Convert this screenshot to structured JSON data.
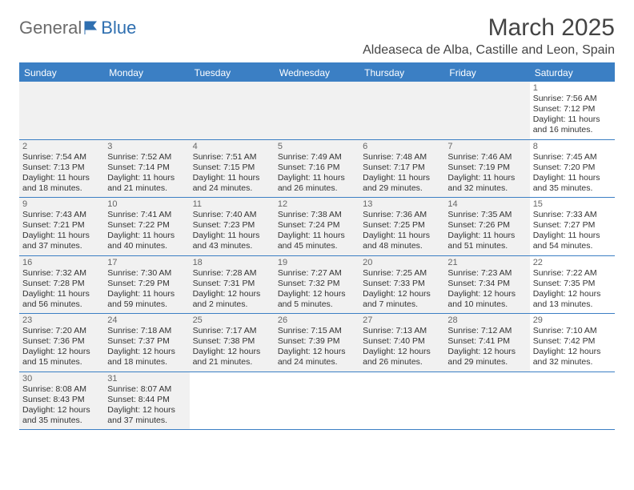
{
  "logo": {
    "part1": "General",
    "part2": "Blue"
  },
  "header": {
    "month_title": "March 2025",
    "location": "Aldeaseca de Alba, Castille and Leon, Spain"
  },
  "colors": {
    "header_blue": "#3b7fc4",
    "shaded_bg": "#f1f1f1",
    "text": "#333333",
    "logo_gray": "#6b6b6b",
    "logo_blue": "#2f6fb0"
  },
  "days_of_week": [
    "Sunday",
    "Monday",
    "Tuesday",
    "Wednesday",
    "Thursday",
    "Friday",
    "Saturday"
  ],
  "weeks": [
    [
      {
        "n": "",
        "shaded": true
      },
      {
        "n": "",
        "shaded": true
      },
      {
        "n": "",
        "shaded": true
      },
      {
        "n": "",
        "shaded": true
      },
      {
        "n": "",
        "shaded": true
      },
      {
        "n": "",
        "shaded": true
      },
      {
        "n": "1",
        "shaded": false,
        "sunrise": "Sunrise: 7:56 AM",
        "sunset": "Sunset: 7:12 PM",
        "day1": "Daylight: 11 hours",
        "day2": "and 16 minutes."
      }
    ],
    [
      {
        "n": "2",
        "shaded": true,
        "sunrise": "Sunrise: 7:54 AM",
        "sunset": "Sunset: 7:13 PM",
        "day1": "Daylight: 11 hours",
        "day2": "and 18 minutes."
      },
      {
        "n": "3",
        "shaded": true,
        "sunrise": "Sunrise: 7:52 AM",
        "sunset": "Sunset: 7:14 PM",
        "day1": "Daylight: 11 hours",
        "day2": "and 21 minutes."
      },
      {
        "n": "4",
        "shaded": true,
        "sunrise": "Sunrise: 7:51 AM",
        "sunset": "Sunset: 7:15 PM",
        "day1": "Daylight: 11 hours",
        "day2": "and 24 minutes."
      },
      {
        "n": "5",
        "shaded": true,
        "sunrise": "Sunrise: 7:49 AM",
        "sunset": "Sunset: 7:16 PM",
        "day1": "Daylight: 11 hours",
        "day2": "and 26 minutes."
      },
      {
        "n": "6",
        "shaded": true,
        "sunrise": "Sunrise: 7:48 AM",
        "sunset": "Sunset: 7:17 PM",
        "day1": "Daylight: 11 hours",
        "day2": "and 29 minutes."
      },
      {
        "n": "7",
        "shaded": true,
        "sunrise": "Sunrise: 7:46 AM",
        "sunset": "Sunset: 7:19 PM",
        "day1": "Daylight: 11 hours",
        "day2": "and 32 minutes."
      },
      {
        "n": "8",
        "shaded": false,
        "sunrise": "Sunrise: 7:45 AM",
        "sunset": "Sunset: 7:20 PM",
        "day1": "Daylight: 11 hours",
        "day2": "and 35 minutes."
      }
    ],
    [
      {
        "n": "9",
        "shaded": true,
        "sunrise": "Sunrise: 7:43 AM",
        "sunset": "Sunset: 7:21 PM",
        "day1": "Daylight: 11 hours",
        "day2": "and 37 minutes."
      },
      {
        "n": "10",
        "shaded": true,
        "sunrise": "Sunrise: 7:41 AM",
        "sunset": "Sunset: 7:22 PM",
        "day1": "Daylight: 11 hours",
        "day2": "and 40 minutes."
      },
      {
        "n": "11",
        "shaded": true,
        "sunrise": "Sunrise: 7:40 AM",
        "sunset": "Sunset: 7:23 PM",
        "day1": "Daylight: 11 hours",
        "day2": "and 43 minutes."
      },
      {
        "n": "12",
        "shaded": true,
        "sunrise": "Sunrise: 7:38 AM",
        "sunset": "Sunset: 7:24 PM",
        "day1": "Daylight: 11 hours",
        "day2": "and 45 minutes."
      },
      {
        "n": "13",
        "shaded": true,
        "sunrise": "Sunrise: 7:36 AM",
        "sunset": "Sunset: 7:25 PM",
        "day1": "Daylight: 11 hours",
        "day2": "and 48 minutes."
      },
      {
        "n": "14",
        "shaded": true,
        "sunrise": "Sunrise: 7:35 AM",
        "sunset": "Sunset: 7:26 PM",
        "day1": "Daylight: 11 hours",
        "day2": "and 51 minutes."
      },
      {
        "n": "15",
        "shaded": false,
        "sunrise": "Sunrise: 7:33 AM",
        "sunset": "Sunset: 7:27 PM",
        "day1": "Daylight: 11 hours",
        "day2": "and 54 minutes."
      }
    ],
    [
      {
        "n": "16",
        "shaded": true,
        "sunrise": "Sunrise: 7:32 AM",
        "sunset": "Sunset: 7:28 PM",
        "day1": "Daylight: 11 hours",
        "day2": "and 56 minutes."
      },
      {
        "n": "17",
        "shaded": true,
        "sunrise": "Sunrise: 7:30 AM",
        "sunset": "Sunset: 7:29 PM",
        "day1": "Daylight: 11 hours",
        "day2": "and 59 minutes."
      },
      {
        "n": "18",
        "shaded": true,
        "sunrise": "Sunrise: 7:28 AM",
        "sunset": "Sunset: 7:31 PM",
        "day1": "Daylight: 12 hours",
        "day2": "and 2 minutes."
      },
      {
        "n": "19",
        "shaded": true,
        "sunrise": "Sunrise: 7:27 AM",
        "sunset": "Sunset: 7:32 PM",
        "day1": "Daylight: 12 hours",
        "day2": "and 5 minutes."
      },
      {
        "n": "20",
        "shaded": true,
        "sunrise": "Sunrise: 7:25 AM",
        "sunset": "Sunset: 7:33 PM",
        "day1": "Daylight: 12 hours",
        "day2": "and 7 minutes."
      },
      {
        "n": "21",
        "shaded": true,
        "sunrise": "Sunrise: 7:23 AM",
        "sunset": "Sunset: 7:34 PM",
        "day1": "Daylight: 12 hours",
        "day2": "and 10 minutes."
      },
      {
        "n": "22",
        "shaded": false,
        "sunrise": "Sunrise: 7:22 AM",
        "sunset": "Sunset: 7:35 PM",
        "day1": "Daylight: 12 hours",
        "day2": "and 13 minutes."
      }
    ],
    [
      {
        "n": "23",
        "shaded": true,
        "sunrise": "Sunrise: 7:20 AM",
        "sunset": "Sunset: 7:36 PM",
        "day1": "Daylight: 12 hours",
        "day2": "and 15 minutes."
      },
      {
        "n": "24",
        "shaded": true,
        "sunrise": "Sunrise: 7:18 AM",
        "sunset": "Sunset: 7:37 PM",
        "day1": "Daylight: 12 hours",
        "day2": "and 18 minutes."
      },
      {
        "n": "25",
        "shaded": true,
        "sunrise": "Sunrise: 7:17 AM",
        "sunset": "Sunset: 7:38 PM",
        "day1": "Daylight: 12 hours",
        "day2": "and 21 minutes."
      },
      {
        "n": "26",
        "shaded": true,
        "sunrise": "Sunrise: 7:15 AM",
        "sunset": "Sunset: 7:39 PM",
        "day1": "Daylight: 12 hours",
        "day2": "and 24 minutes."
      },
      {
        "n": "27",
        "shaded": true,
        "sunrise": "Sunrise: 7:13 AM",
        "sunset": "Sunset: 7:40 PM",
        "day1": "Daylight: 12 hours",
        "day2": "and 26 minutes."
      },
      {
        "n": "28",
        "shaded": true,
        "sunrise": "Sunrise: 7:12 AM",
        "sunset": "Sunset: 7:41 PM",
        "day1": "Daylight: 12 hours",
        "day2": "and 29 minutes."
      },
      {
        "n": "29",
        "shaded": false,
        "sunrise": "Sunrise: 7:10 AM",
        "sunset": "Sunset: 7:42 PM",
        "day1": "Daylight: 12 hours",
        "day2": "and 32 minutes."
      }
    ],
    [
      {
        "n": "30",
        "shaded": true,
        "sunrise": "Sunrise: 8:08 AM",
        "sunset": "Sunset: 8:43 PM",
        "day1": "Daylight: 12 hours",
        "day2": "and 35 minutes."
      },
      {
        "n": "31",
        "shaded": true,
        "sunrise": "Sunrise: 8:07 AM",
        "sunset": "Sunset: 8:44 PM",
        "day1": "Daylight: 12 hours",
        "day2": "and 37 minutes."
      },
      {
        "n": "",
        "shaded": false
      },
      {
        "n": "",
        "shaded": false
      },
      {
        "n": "",
        "shaded": false
      },
      {
        "n": "",
        "shaded": false
      },
      {
        "n": "",
        "shaded": false
      }
    ]
  ]
}
